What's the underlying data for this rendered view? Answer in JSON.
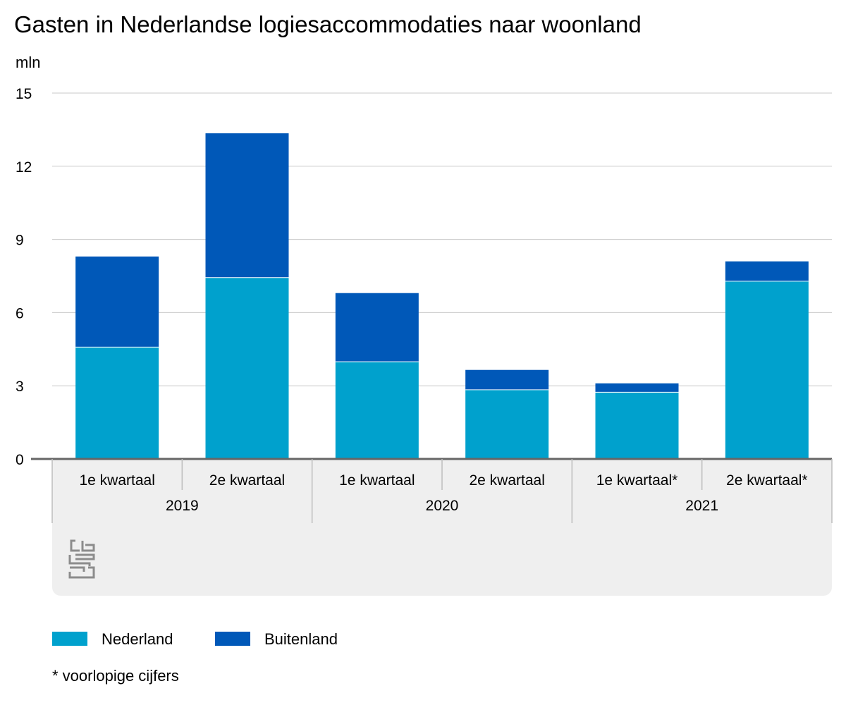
{
  "chart_data": {
    "type": "bar",
    "stacked": true,
    "title": "Gasten in Nederlandse logiesaccommodaties naar woonland",
    "ylabel": "mln",
    "xlabel": "",
    "ylim": [
      0,
      15
    ],
    "yticks": [
      0,
      3,
      6,
      9,
      12,
      15
    ],
    "grid": true,
    "groups": [
      {
        "label": "2019",
        "categories": [
          "1e kwartaal",
          "2e kwartaal"
        ]
      },
      {
        "label": "2020",
        "categories": [
          "1e kwartaal",
          "2e kwartaal"
        ]
      },
      {
        "label": "2021",
        "categories": [
          "1e kwartaal*",
          "2e kwartaal*"
        ]
      }
    ],
    "categories": [
      "1e kwartaal",
      "2e kwartaal",
      "1e kwartaal",
      "2e kwartaal",
      "1e kwartaal*",
      "2e kwartaal*"
    ],
    "series": [
      {
        "name": "Nederland",
        "color": "#00a1cd",
        "values": [
          4.6,
          7.45,
          4.0,
          2.85,
          2.75,
          7.3
        ]
      },
      {
        "name": "Buitenland",
        "color": "#0058b8",
        "values": [
          3.7,
          5.9,
          2.8,
          0.8,
          0.35,
          0.8
        ]
      }
    ],
    "legend_position": "bottom-left",
    "footnote": "* voorlopige cijfers"
  },
  "logo": {
    "name": "cbs"
  }
}
